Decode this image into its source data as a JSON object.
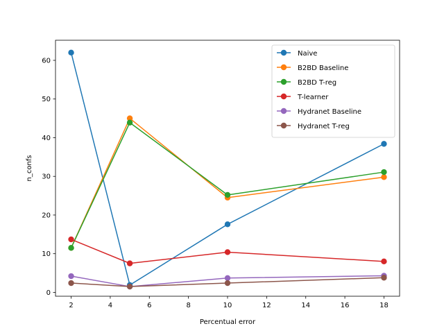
{
  "chart_data": {
    "type": "line",
    "title": "",
    "xlabel": "Percentual error",
    "ylabel": "n_confs",
    "xlim": [
      1.2,
      18.8
    ],
    "ylim": [
      -1.0,
      65.2
    ],
    "xticks": [
      2,
      4,
      6,
      8,
      10,
      12,
      14,
      16,
      18
    ],
    "yticks": [
      0,
      10,
      20,
      30,
      40,
      50,
      60
    ],
    "grid": false,
    "legend": "top-right",
    "x": [
      2,
      5,
      10,
      18
    ],
    "series": [
      {
        "name": "Naive",
        "color": "#1f77b4",
        "values": [
          62.0,
          1.9,
          17.6,
          38.4
        ]
      },
      {
        "name": "B2BD Baseline",
        "color": "#ff7f0e",
        "values": [
          11.5,
          45.0,
          24.5,
          29.8
        ]
      },
      {
        "name": "B2BD T-reg",
        "color": "#2ca02c",
        "values": [
          11.5,
          43.9,
          25.2,
          31.1
        ]
      },
      {
        "name": "T-learner",
        "color": "#d62728",
        "values": [
          13.7,
          7.5,
          10.4,
          8.0
        ]
      },
      {
        "name": "Hydranet Baseline",
        "color": "#9467bd",
        "values": [
          4.2,
          1.5,
          3.7,
          4.3
        ]
      },
      {
        "name": "Hydranet T-reg",
        "color": "#8c564b",
        "values": [
          2.4,
          1.5,
          2.4,
          3.8
        ]
      }
    ]
  }
}
